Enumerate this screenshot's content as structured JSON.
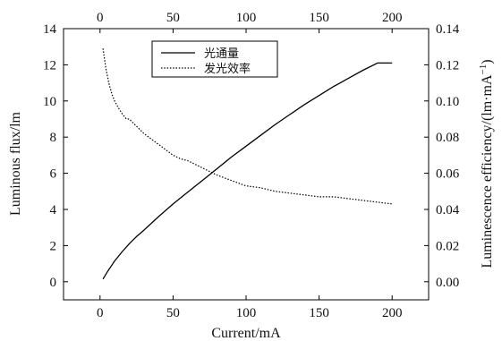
{
  "chart_data": {
    "type": "line",
    "xlabel": "Current/mA",
    "ylabel_left": "Luminous flux/lm",
    "ylabel_right_prefix": "Luminescence efficiency/(lm·mA",
    "ylabel_right_sup": "−1",
    "ylabel_right_suffix": ")",
    "xlim": [
      -25,
      225
    ],
    "ylim_left": [
      -1,
      14
    ],
    "ylim_right": [
      -0.01,
      0.14
    ],
    "x_ticks": [
      0,
      50,
      100,
      150,
      200
    ],
    "x_tick_labels": [
      "0",
      "50",
      "100",
      "150",
      "200"
    ],
    "y_left_ticks": [
      0,
      2,
      4,
      6,
      8,
      10,
      12,
      14
    ],
    "y_left_tick_labels": [
      "0",
      "2",
      "4",
      "6",
      "8",
      "10",
      "12",
      "14"
    ],
    "y_right_ticks": [
      0,
      0.02,
      0.04,
      0.06,
      0.08,
      0.1,
      0.12,
      0.14
    ],
    "y_right_tick_labels": [
      "0.00",
      "0.02",
      "0.04",
      "0.06",
      "0.08",
      "0.10",
      "0.12",
      "0.14"
    ],
    "grid": false,
    "legend_position": "top-center",
    "series": [
      {
        "name": "光通量",
        "axis": "left",
        "style": "solid",
        "color": "#000000",
        "x": [
          2,
          5,
          10,
          15,
          20,
          25,
          30,
          40,
          50,
          60,
          70,
          80,
          90,
          100,
          110,
          120,
          130,
          140,
          150,
          160,
          170,
          180,
          190,
          200
        ],
        "y": [
          0.15,
          0.55,
          1.15,
          1.65,
          2.1,
          2.5,
          2.85,
          3.6,
          4.3,
          4.95,
          5.6,
          6.25,
          6.9,
          7.5,
          8.1,
          8.7,
          9.25,
          9.8,
          10.3,
          10.8,
          11.25,
          11.7,
          12.1,
          12.1
        ]
      },
      {
        "name": "发光效率",
        "axis": "right",
        "style": "dotted",
        "color": "#000000",
        "x": [
          2,
          4,
          6,
          8,
          10,
          12,
          15,
          18,
          20,
          25,
          30,
          35,
          40,
          45,
          50,
          55,
          60,
          65,
          70,
          75,
          80,
          90,
          100,
          110,
          120,
          130,
          140,
          150,
          160,
          170,
          180,
          190,
          200
        ],
        "y": [
          0.129,
          0.118,
          0.11,
          0.104,
          0.1,
          0.097,
          0.093,
          0.09,
          0.09,
          0.086,
          0.082,
          0.079,
          0.076,
          0.073,
          0.07,
          0.068,
          0.067,
          0.065,
          0.063,
          0.061,
          0.059,
          0.056,
          0.053,
          0.052,
          0.05,
          0.049,
          0.048,
          0.047,
          0.047,
          0.046,
          0.045,
          0.044,
          0.043
        ]
      }
    ]
  }
}
